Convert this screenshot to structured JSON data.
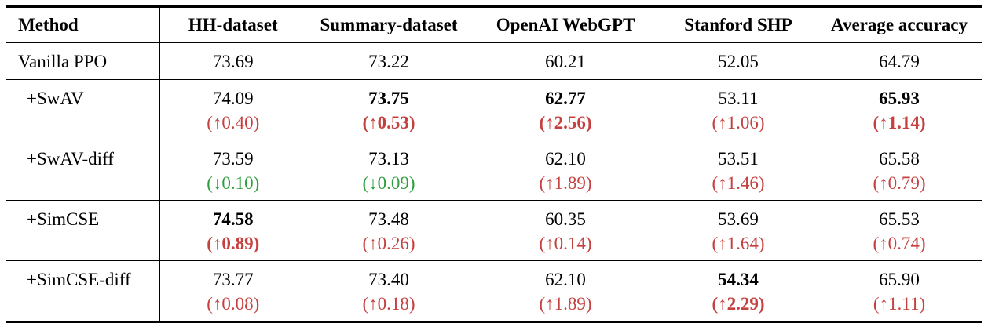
{
  "colors": {
    "increase": "#c5403f",
    "decrease": "#2f9e3e",
    "text": "#000000",
    "background": "#ffffff"
  },
  "table": {
    "columns": [
      "Method",
      "HH-dataset",
      "Summary-dataset",
      "OpenAI WebGPT",
      "Stanford SHP",
      "Average accuracy"
    ],
    "rows": [
      {
        "method": "Vanilla PPO",
        "indent": false,
        "cells": [
          {
            "value": "73.69",
            "bold": false,
            "delta": "",
            "direction": ""
          },
          {
            "value": "73.22",
            "bold": false,
            "delta": "",
            "direction": ""
          },
          {
            "value": "60.21",
            "bold": false,
            "delta": "",
            "direction": ""
          },
          {
            "value": "52.05",
            "bold": false,
            "delta": "",
            "direction": ""
          },
          {
            "value": "64.79",
            "bold": false,
            "delta": "",
            "direction": ""
          }
        ]
      },
      {
        "method": "+SwAV",
        "indent": true,
        "cells": [
          {
            "value": "74.09",
            "bold": false,
            "delta": "(↑0.40)",
            "direction": "up"
          },
          {
            "value": "73.75",
            "bold": true,
            "delta": "(↑0.53)",
            "direction": "up"
          },
          {
            "value": "62.77",
            "bold": true,
            "delta": "(↑2.56)",
            "direction": "up"
          },
          {
            "value": "53.11",
            "bold": false,
            "delta": "(↑1.06)",
            "direction": "up"
          },
          {
            "value": "65.93",
            "bold": true,
            "delta": "(↑1.14)",
            "direction": "up"
          }
        ]
      },
      {
        "method": "+SwAV-diff",
        "indent": true,
        "cells": [
          {
            "value": "73.59",
            "bold": false,
            "delta": "(↓0.10)",
            "direction": "down"
          },
          {
            "value": "73.13",
            "bold": false,
            "delta": "(↓0.09)",
            "direction": "down"
          },
          {
            "value": "62.10",
            "bold": false,
            "delta": "(↑1.89)",
            "direction": "up"
          },
          {
            "value": "53.51",
            "bold": false,
            "delta": "(↑1.46)",
            "direction": "up"
          },
          {
            "value": "65.58",
            "bold": false,
            "delta": "(↑0.79)",
            "direction": "up"
          }
        ]
      },
      {
        "method": "+SimCSE",
        "indent": true,
        "cells": [
          {
            "value": "74.58",
            "bold": true,
            "delta": "(↑0.89)",
            "direction": "up"
          },
          {
            "value": "73.48",
            "bold": false,
            "delta": "(↑0.26)",
            "direction": "up"
          },
          {
            "value": "60.35",
            "bold": false,
            "delta": "(↑0.14)",
            "direction": "up"
          },
          {
            "value": "53.69",
            "bold": false,
            "delta": "(↑1.64)",
            "direction": "up"
          },
          {
            "value": "65.53",
            "bold": false,
            "delta": "(↑0.74)",
            "direction": "up"
          }
        ]
      },
      {
        "method": "+SimCSE-diff",
        "indent": true,
        "cells": [
          {
            "value": "73.77",
            "bold": false,
            "delta": "(↑0.08)",
            "direction": "up"
          },
          {
            "value": "73.40",
            "bold": false,
            "delta": "(↑0.18)",
            "direction": "up"
          },
          {
            "value": "62.10",
            "bold": false,
            "delta": "(↑1.89)",
            "direction": "up"
          },
          {
            "value": "54.34",
            "bold": true,
            "delta": "(↑2.29)",
            "direction": "up"
          },
          {
            "value": "65.90",
            "bold": false,
            "delta": "(↑1.11)",
            "direction": "up"
          }
        ]
      }
    ]
  }
}
